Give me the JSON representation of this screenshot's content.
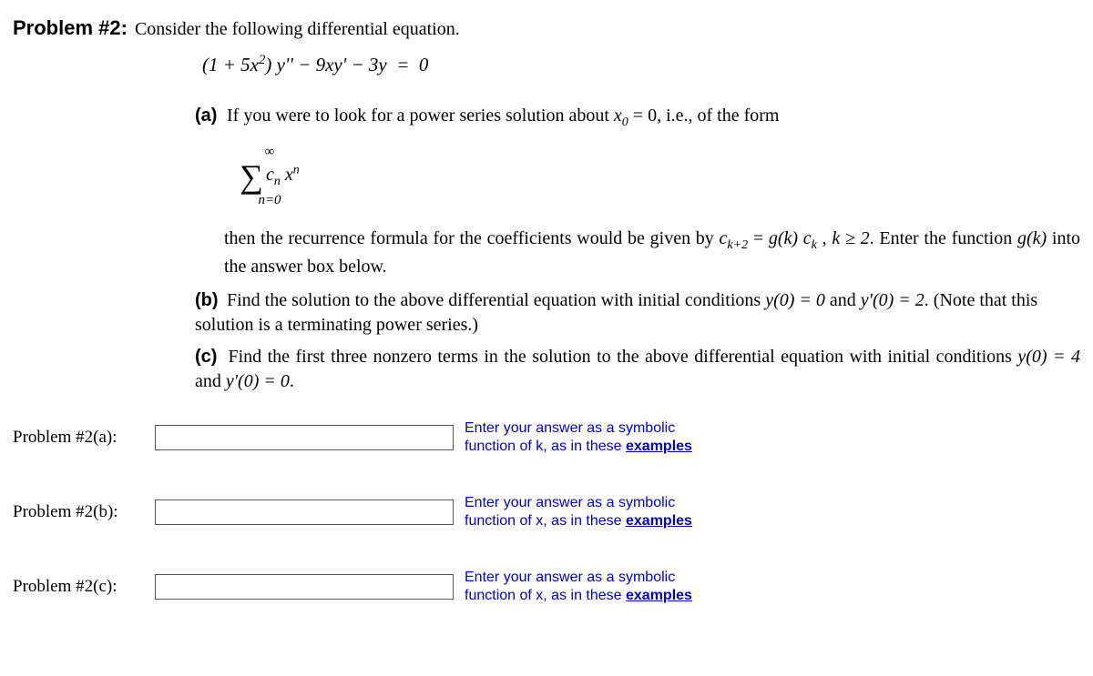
{
  "heading": {
    "label": "Problem #2:",
    "intro": "Consider the following differential equation."
  },
  "equation": "(1 + 5x²) y'' − 9xy' − 3y  =  0",
  "parts": {
    "a": {
      "label": "(a)",
      "text1": "If you were to look for a power series solution about ",
      "x0": "x",
      "x0_sub": "0",
      "text2": "  =  0, i.e., of the form",
      "sigma_top": "∞",
      "sigma_body": "cₙ xⁿ",
      "sigma_bottom": "n=0",
      "text3a": "then the recurrence formula for the coefficients would be given by ",
      "ck2_c": "c",
      "ck2_sub": "k+2",
      "text3b": "  =  ",
      "gk": "g(k)",
      "ck_c": "c",
      "ck_sub": "k",
      "text3c": " ,  ",
      "kcond": "k  ≥  2",
      "text3d": ". Enter the function ",
      "gk2": "g(k)",
      "text3e": " into the answer box below."
    },
    "b": {
      "label": "(b)",
      "text1": "Find the solution to the above differential equation with initial conditions ",
      "y0": "y(0)  =  0",
      "and": " and ",
      "yp0": "y'(0)  =  2",
      "text2": ". (Note that this solution is a terminating power series.)"
    },
    "c": {
      "label": "(c)",
      "text1": "Find the first three nonzero terms in the solution to the above differential equation with initial conditions ",
      "y0": "y(0)  =  4",
      "and": " and ",
      "yp0": "y'(0)  =  0",
      "text2": "."
    }
  },
  "answers": {
    "a": {
      "label": "Problem #2(a):",
      "hint_prefix": "Enter your answer as a symbolic function of k, as in these ",
      "hint_link": "examples"
    },
    "b": {
      "label": "Problem #2(b):",
      "hint_prefix": "Enter your answer as a symbolic function of x, as in these ",
      "hint_link": "examples"
    },
    "c": {
      "label": "Problem #2(c):",
      "hint_prefix": "Enter your answer as a symbolic function of x, as in these ",
      "hint_link": "examples"
    }
  }
}
